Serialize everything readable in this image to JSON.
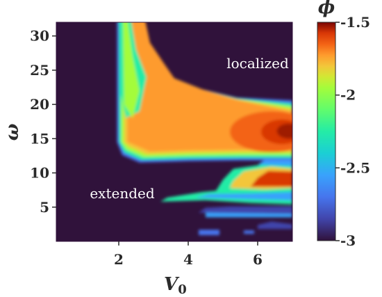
{
  "chart_data": {
    "type": "heatmap",
    "xlabel": "V",
    "xlabel_sub": "0",
    "ylabel": "ω",
    "xlim": [
      0.2,
      7
    ],
    "ylim": [
      0,
      32
    ],
    "xticks": [
      "2",
      "4",
      "6"
    ],
    "xtick_values": [
      2,
      4,
      6
    ],
    "yticks": [
      "5",
      "10",
      "15",
      "20",
      "25",
      "30"
    ],
    "ytick_values": [
      5,
      10,
      15,
      20,
      25,
      30
    ],
    "annotations": [
      {
        "text": "localized",
        "x": 6.0,
        "y": 26
      },
      {
        "text": "extended",
        "x": 2.1,
        "y": 7
      }
    ],
    "colorbar": {
      "label": "ϕ",
      "range": [
        -3,
        -1.5
      ],
      "ticks": [
        "-1.5",
        "-2",
        "-2.5",
        "-3"
      ],
      "tick_values": [
        -1.5,
        -2,
        -2.5,
        -3
      ],
      "colormap": "turbo"
    },
    "background_value": -3,
    "features": [
      {
        "name": "main-band",
        "x_start": 1.95,
        "y_low": 11.5,
        "y_high": 20.5,
        "peak": -1.55,
        "peak_x": 6.8,
        "peak_y": 16
      },
      {
        "name": "vertical-arm",
        "x_start": 1.95,
        "x_end": 2.7,
        "y_low": 14,
        "y_high": 32,
        "peak": -2.1
      },
      {
        "name": "lower-band-1",
        "x_start": 3.4,
        "y_low": 6.5,
        "y_high": 11.5,
        "peak": -1.7
      },
      {
        "name": "lower-band-2",
        "x_start": 4.5,
        "y_low": 4,
        "y_high": 6.5,
        "peak": -2.3
      },
      {
        "name": "fragments",
        "x_start": 4.5,
        "y_low": 1,
        "y_high": 4,
        "peak": -2.7
      }
    ]
  },
  "colors": {
    "background": "#30123b",
    "text": "#2b2b2b",
    "annotation": "#ffffff"
  }
}
